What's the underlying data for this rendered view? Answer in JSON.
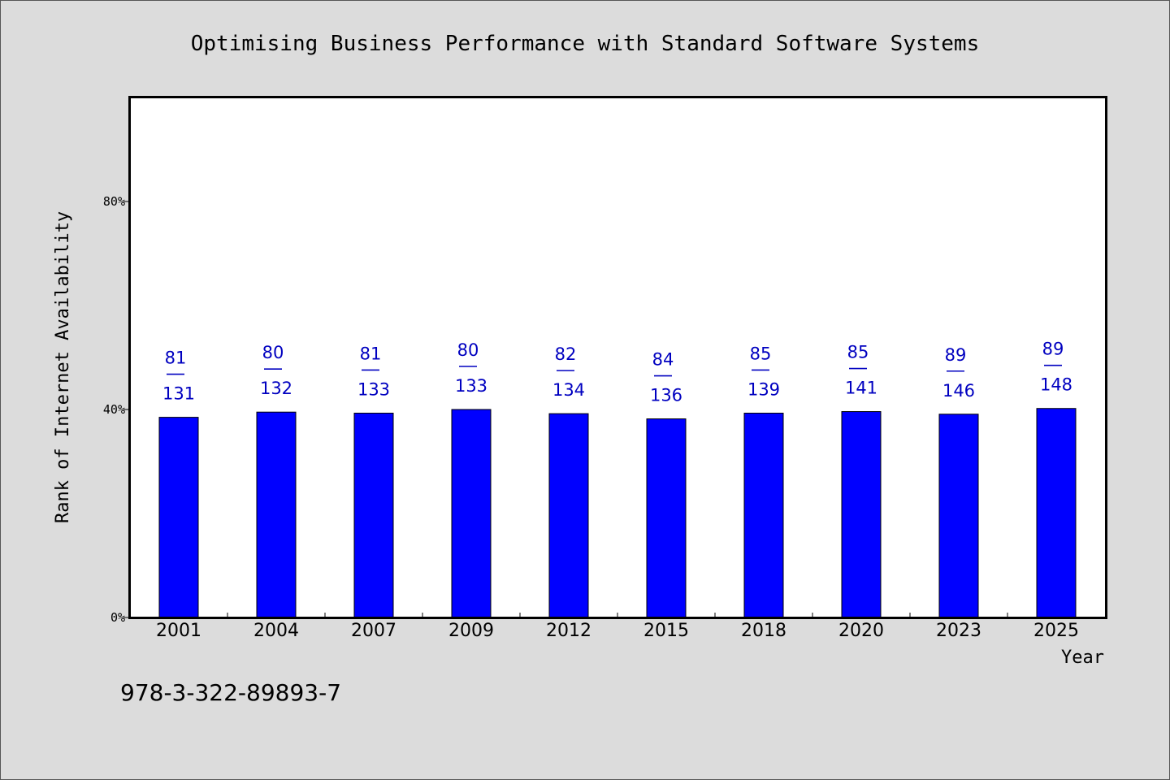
{
  "chart_data": {
    "type": "bar",
    "title": "Optimising Business Performance with Standard Software Systems",
    "xlabel": "Year",
    "ylabel": "Rank of Internet Availability",
    "categories": [
      "2001",
      "2004",
      "2007",
      "2009",
      "2012",
      "2015",
      "2018",
      "2020",
      "2023",
      "2025"
    ],
    "series": [
      {
        "values": [
          38.5,
          39.5,
          39.3,
          40.0,
          39.2,
          38.2,
          39.3,
          39.6,
          39.1,
          40.2
        ],
        "bar_labels": [
          [
            "81",
            "131"
          ],
          [
            "80",
            "132"
          ],
          [
            "81",
            "133"
          ],
          [
            "80",
            "133"
          ],
          [
            "82",
            "134"
          ],
          [
            "84",
            "136"
          ],
          [
            "85",
            "139"
          ],
          [
            "85",
            "141"
          ],
          [
            "89",
            "146"
          ],
          [
            "89",
            "148"
          ]
        ]
      }
    ],
    "ylim": [
      0,
      100
    ],
    "yticks": [
      0,
      40,
      80
    ],
    "ytick_labels": [
      "0%",
      "40%",
      "80%"
    ],
    "grid": false,
    "legend": "none",
    "colors": {
      "bar": "#0000ff",
      "bar_label": "#0000c0",
      "background": "#dcdcdc",
      "plot_background": "#ffffff"
    }
  },
  "footnote": "978-3-322-89893-7"
}
